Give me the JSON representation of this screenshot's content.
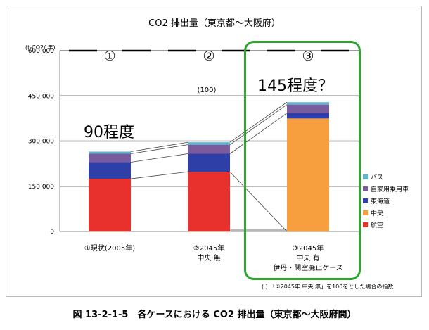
{
  "chart_data": {
    "type": "bar",
    "stacked": true,
    "title": "CO2 排出量（東京都～大阪府）",
    "ylabel": "(t-CO2/ 年)",
    "ylim": [
      0,
      600000
    ],
    "yticks": [
      "0",
      "150,000",
      "300,000",
      "450,000",
      "600,000"
    ],
    "grid": true,
    "legend_position": "right",
    "categories": [
      "①現状(2005年)",
      "②2045年 中央 無",
      "③2045年 中央 有 伊丹・関空廃止ケース"
    ],
    "category_lines": [
      [
        "①現状(2005年)"
      ],
      [
        "②2045年",
        "中央 無"
      ],
      [
        "③2045年",
        "中央 有",
        "伊丹・関空廃止ケース"
      ]
    ],
    "case_markers": [
      "①",
      "②",
      "③"
    ],
    "series": [
      {
        "name": "航空",
        "color": "#e8312d",
        "values": [
          175000,
          198000,
          0
        ]
      },
      {
        "name": "中央",
        "color": "#f79e3f",
        "values": [
          0,
          0,
          375000
        ]
      },
      {
        "name": "東海道",
        "color": "#2f3fa8",
        "values": [
          55000,
          60000,
          18000
        ]
      },
      {
        "name": "自家用乗用車",
        "color": "#7a5c9e",
        "values": [
          28000,
          30000,
          28000
        ]
      },
      {
        "name": "バス",
        "color": "#5fb3cf",
        "values": [
          7000,
          8000,
          8000
        ]
      }
    ],
    "legend_order": [
      "バス",
      "自家用乗用車",
      "東海道",
      "中央",
      "航空"
    ],
    "annotations": [
      {
        "text": "(100)"
      }
    ]
  },
  "annotations": {
    "bar1": "90程度",
    "bar3": "145程度？"
  },
  "note": "(   ):「②2045年 中央 無」を100をとした場合の指数",
  "caption": "図 13-2-1-5　各ケースにおける CO2 排出量（東京都～大阪府間）",
  "highlight_color": "#2ea62e"
}
